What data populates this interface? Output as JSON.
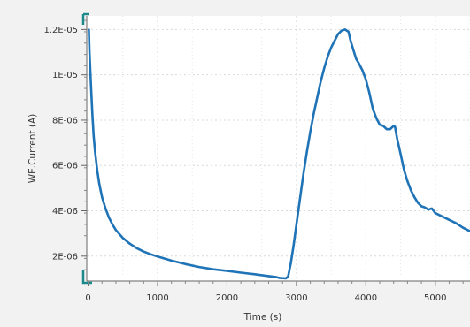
{
  "chart_data": {
    "type": "line",
    "title": "",
    "xlabel": "Time (s)",
    "ylabel": "WE.Current (A)",
    "xlim": [
      -20,
      5500
    ],
    "ylim": [
      9e-07,
      1.26e-05
    ],
    "x_ticks": [
      0,
      1000,
      2000,
      3000,
      4000,
      5000
    ],
    "x_tick_labels": [
      "0",
      "1000",
      "2000",
      "3000",
      "4000",
      "5000"
    ],
    "y_ticks": [
      2e-06,
      4e-06,
      6e-06,
      8e-06,
      1e-05,
      1.2e-05
    ],
    "y_tick_labels": [
      "2E-06",
      "4E-06",
      "6E-06",
      "8E-06",
      "1E-05",
      "1.2E-05"
    ],
    "grid": true,
    "legend": false,
    "series": [
      {
        "color": "#1f73b7",
        "x": [
          10,
          20,
          40,
          60,
          80,
          100,
          130,
          160,
          200,
          250,
          300,
          350,
          400,
          500,
          600,
          700,
          800,
          900,
          1000,
          1200,
          1400,
          1600,
          1800,
          2000,
          2200,
          2400,
          2600,
          2700,
          2750,
          2800,
          2850,
          2880,
          2920,
          2960,
          3000,
          3050,
          3100,
          3150,
          3200,
          3250,
          3300,
          3350,
          3400,
          3450,
          3500,
          3550,
          3600,
          3650,
          3700,
          3750,
          3780,
          3820,
          3860,
          3900,
          3950,
          4000,
          4050,
          4100,
          4150,
          4200,
          4250,
          4300,
          4350,
          4400,
          4420,
          4450,
          4500,
          4550,
          4600,
          4650,
          4700,
          4750,
          4800,
          4850,
          4900,
          4950,
          5000,
          5100,
          5200,
          5300,
          5400,
          5500
        ],
        "y": [
          1.2e-05,
          1.1e-05,
          9.6e-06,
          8.3e-06,
          7.3e-06,
          6.6e-06,
          5.8e-06,
          5.2e-06,
          4.6e-06,
          4.1e-06,
          3.7e-06,
          3.4e-06,
          3.15e-06,
          2.8e-06,
          2.55e-06,
          2.35e-06,
          2.2e-06,
          2.08e-06,
          1.98e-06,
          1.8e-06,
          1.65e-06,
          1.52e-06,
          1.42e-06,
          1.35e-06,
          1.27e-06,
          1.2e-06,
          1.12e-06,
          1.08e-06,
          1.04e-06,
          1.03e-06,
          1.02e-06,
          1.1e-06,
          1.7e-06,
          2.5e-06,
          3.4e-06,
          4.5e-06,
          5.6e-06,
          6.6e-06,
          7.5e-06,
          8.3e-06,
          9e-06,
          9.7e-06,
          1.03e-05,
          1.08e-05,
          1.12e-05,
          1.15e-05,
          1.18e-05,
          1.195e-05,
          1.2e-05,
          1.19e-05,
          1.15e-05,
          1.11e-05,
          1.07e-05,
          1.05e-05,
          1.02e-05,
          9.8e-06,
          9.2e-06,
          8.5e-06,
          8.1e-06,
          7.8e-06,
          7.75e-06,
          7.6e-06,
          7.6e-06,
          7.75e-06,
          7.7e-06,
          7.2e-06,
          6.5e-06,
          5.8e-06,
          5.3e-06,
          4.9e-06,
          4.6e-06,
          4.35e-06,
          4.2e-06,
          4.15e-06,
          4.05e-06,
          4.1e-06,
          3.9e-06,
          3.75e-06,
          3.6e-06,
          3.45e-06,
          3.25e-06,
          3.1e-06
        ]
      }
    ]
  }
}
